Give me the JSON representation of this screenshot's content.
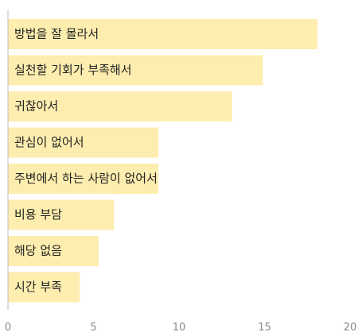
{
  "chart_data": {
    "type": "bar",
    "orientation": "horizontal",
    "categories": [
      "방법을 잘 몰라서",
      "실천할 기회가 부족해서",
      "귀찮아서",
      "관심이 없어서",
      "주변에서 하는 사람이 없어서",
      "비용 부담",
      "해당 없음",
      "시간 부족"
    ],
    "values": [
      18.1,
      14.9,
      13.1,
      8.8,
      8.8,
      6.2,
      5.3,
      4.2
    ],
    "xlim": [
      0,
      20
    ],
    "xticks": [
      "0",
      "5",
      "10",
      "15",
      "20"
    ],
    "bar_color": "#fdedaf",
    "axis_color": "#bbbbbb",
    "title": "",
    "xlabel": "",
    "ylabel": ""
  }
}
